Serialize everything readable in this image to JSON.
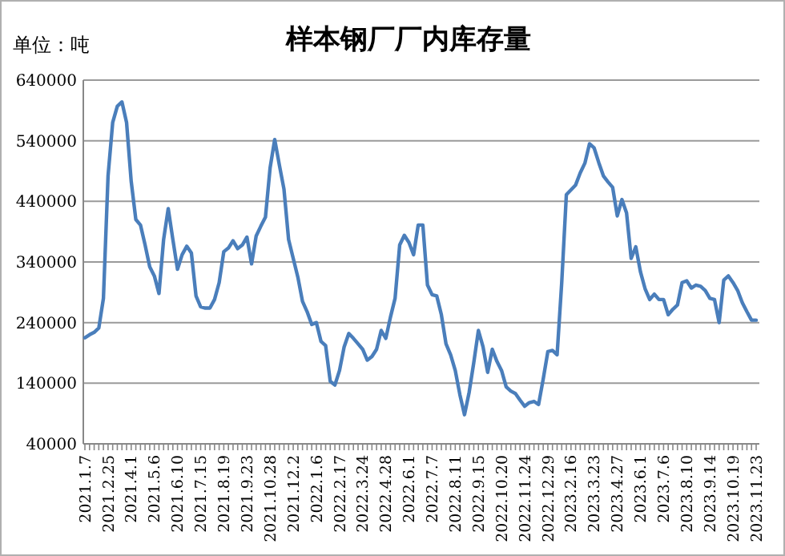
{
  "chart_data": {
    "type": "line",
    "title": "样本钢厂厂内库存量",
    "ylabel": "单位：吨",
    "categories": [
      "2021.1.7",
      null,
      null,
      null,
      null,
      "2021.2.25",
      null,
      null,
      null,
      null,
      "2021.4.1",
      null,
      null,
      null,
      null,
      "2021.5.6",
      null,
      null,
      null,
      null,
      "2021.6.10",
      null,
      null,
      null,
      null,
      "2021.7.15",
      null,
      null,
      null,
      null,
      "2021.8.19",
      null,
      null,
      null,
      null,
      "2021.9.23",
      null,
      null,
      null,
      null,
      "2021.10.28",
      null,
      null,
      null,
      null,
      "2021.12.2",
      null,
      null,
      null,
      null,
      "2022.1.6",
      null,
      null,
      null,
      null,
      "2022.2.17",
      null,
      null,
      null,
      null,
      "2022.3.24",
      null,
      null,
      null,
      null,
      "2022.4.28",
      null,
      null,
      null,
      null,
      "2022.6.1",
      null,
      null,
      null,
      null,
      "2022.7.7",
      null,
      null,
      null,
      null,
      "2022.8.11",
      null,
      null,
      null,
      null,
      "2022.9.15",
      null,
      null,
      null,
      null,
      "2022.10.20",
      null,
      null,
      null,
      null,
      "2022.11.24",
      null,
      null,
      null,
      null,
      "2022.12.29",
      null,
      null,
      null,
      null,
      "2023.2.16",
      null,
      null,
      null,
      null,
      "2023.3.23",
      null,
      null,
      null,
      null,
      "2023.4.27",
      null,
      null,
      null,
      null,
      "2023.6.1",
      null,
      null,
      null,
      null,
      "2023.7.6",
      null,
      null,
      null,
      null,
      "2023.8.10",
      null,
      null,
      null,
      null,
      "2023.9.14",
      null,
      null,
      null,
      null,
      "2023.10.19",
      null,
      null,
      null,
      null,
      "2023.11.23"
    ],
    "series": [
      {
        "color": "#4a7ebb",
        "values": [
          215000,
          220000,
          224000,
          231000,
          280000,
          482000,
          570000,
          597000,
          604000,
          570000,
          473000,
          410000,
          401000,
          368000,
          332000,
          317000,
          288000,
          377000,
          428000,
          377000,
          328000,
          352000,
          366000,
          355000,
          284000,
          266000,
          264000,
          264000,
          278000,
          306000,
          357000,
          363000,
          375000,
          362000,
          368000,
          381000,
          337000,
          383000,
          399000,
          414000,
          495000,
          542000,
          500000,
          460000,
          377000,
          346000,
          315000,
          275000,
          258000,
          237000,
          240000,
          209000,
          202000,
          143000,
          137000,
          161000,
          200000,
          222000,
          214000,
          205000,
          196000,
          178000,
          184000,
          196000,
          227000,
          214000,
          249000,
          280000,
          368000,
          384000,
          372000,
          352000,
          401000,
          401000,
          302000,
          286000,
          284000,
          253000,
          205000,
          187000,
          161000,
          121000,
          88000,
          125000,
          174000,
          227000,
          200000,
          158000,
          196000,
          176000,
          161000,
          134000,
          127000,
          123000,
          112000,
          102000,
          108000,
          110000,
          105000,
          147000,
          192000,
          194000,
          187000,
          306000,
          451000,
          459000,
          467000,
          487000,
          503000,
          535000,
          528000,
          504000,
          482000,
          472000,
          463000,
          416000,
          443000,
          421000,
          346000,
          365000,
          324000,
          296000,
          278000,
          287000,
          278000,
          278000,
          253000,
          262000,
          269000,
          306000,
          309000,
          297000,
          302000,
          300000,
          293000,
          280000,
          278000,
          240000,
          310000,
          317000,
          306000,
          293000,
          273000,
          258000,
          244000,
          244000
        ]
      }
    ],
    "ylim": [
      40000,
      640000
    ],
    "yticks": [
      40000,
      140000,
      240000,
      340000,
      440000,
      540000,
      640000
    ],
    "grid": "y",
    "marker": "none",
    "line_style": "solid"
  }
}
